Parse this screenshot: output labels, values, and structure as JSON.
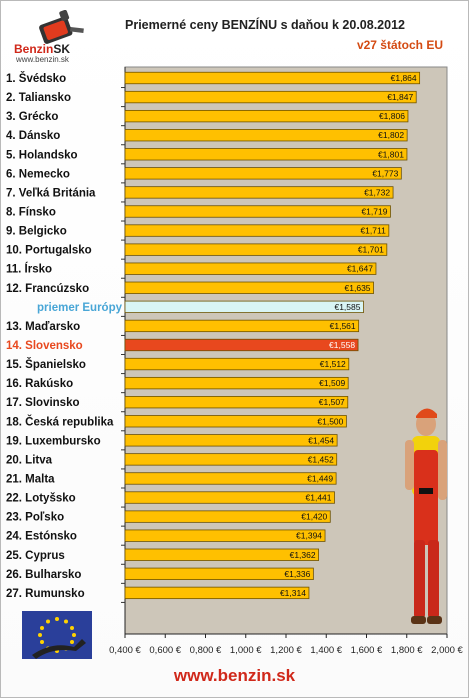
{
  "header": {
    "logo_name": "Benzin",
    "logo_suffix": "SK",
    "logo_url": "www.benzin.sk",
    "title": "Priemerné ceny BENZÍNU s daňou k 20.08.2012",
    "subtitle": "v27 štátoch EU"
  },
  "footer": {
    "url": "www.benzin.sk"
  },
  "colors": {
    "bar": "#ffc000",
    "bar_stroke": "#6e5200",
    "plot_bg": "#cdc6b9",
    "average": "#d9f5f5",
    "highlight": "#e8481e",
    "label": "#111111"
  },
  "icons": {
    "logo": "fuel-gun-logo",
    "flag": "eu-flag-with-pump-icon",
    "mascot": "gas-station-attendant"
  },
  "chart_data": {
    "type": "bar",
    "orientation": "horizontal",
    "title": "Priemerné ceny BENZÍNU s daňou k 20.08.2012",
    "subtitle": "v27 štátoch EU",
    "xlim": [
      0.4,
      2.0
    ],
    "xticks": [
      "0,400 €",
      "0,600 €",
      "0,800 €",
      "1,000 €",
      "1,200 €",
      "1,400 €",
      "1,600 €",
      "1,800 €",
      "2,000 €"
    ],
    "grid": false,
    "categories": [
      "1. Švédsko",
      "2. Taliansko",
      "3. Grécko",
      "4. Dánsko",
      "5. Holandsko",
      "6. Nemecko",
      "7. Veľká Británia",
      "8. Fínsko",
      "9. Belgicko",
      "10. Portugalsko",
      "11. Írsko",
      "12. Francúzsko",
      "priemer Európy",
      "13. Maďarsko",
      "14. Slovensko",
      "15. Španielsko",
      "16. Rakúsko",
      "17. Slovinsko",
      "18. Česká republika",
      "19. Luxembursko",
      "20. Litva",
      "21. Malta",
      "22. Lotyšsko",
      "23. Poľsko",
      "24. Estónsko",
      "25. Cyprus",
      "26. Bulharsko",
      "27. Rumunsko"
    ],
    "values": [
      1.864,
      1.847,
      1.806,
      1.802,
      1.801,
      1.773,
      1.732,
      1.719,
      1.711,
      1.701,
      1.647,
      1.635,
      1.585,
      1.561,
      1.558,
      1.512,
      1.509,
      1.507,
      1.5,
      1.454,
      1.452,
      1.449,
      1.441,
      1.42,
      1.394,
      1.362,
      1.336,
      1.314
    ],
    "value_labels": [
      "€1,864",
      "€1,847",
      "€1,806",
      "€1,802",
      "€1,801",
      "€1,773",
      "€1,732",
      "€1,719",
      "€1,711",
      "€1,701",
      "€1,647",
      "€1,635",
      "€1,585",
      "€1,561",
      "€1,558",
      "€1,512",
      "€1,509",
      "€1,507",
      "€1,500",
      "€1,454",
      "€1,452",
      "€1,449",
      "€1,441",
      "€1,420",
      "€1,394",
      "€1,362",
      "€1,336",
      "€1,314"
    ],
    "average_index": 12,
    "highlight_index": 14
  }
}
